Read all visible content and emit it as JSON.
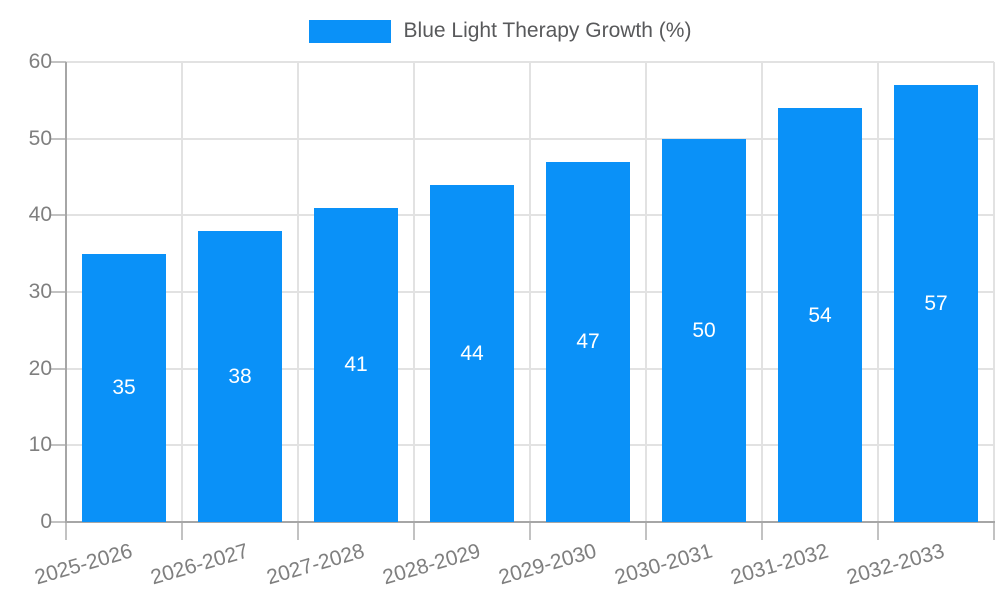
{
  "legend": {
    "label": "Blue Light Therapy Growth (%)"
  },
  "chart_data": {
    "type": "bar",
    "title": "",
    "legend_label": "Blue Light Therapy Growth (%)",
    "legend_position": "top",
    "categories": [
      "2025-2026",
      "2026-2027",
      "2027-2028",
      "2028-2029",
      "2029-2030",
      "2030-2031",
      "2031-2032",
      "2032-2033"
    ],
    "values": [
      35,
      38,
      41,
      44,
      47,
      50,
      54,
      57
    ],
    "xlabel": "",
    "ylabel": "",
    "ylim": [
      0,
      60
    ],
    "yticks": [
      0,
      10,
      20,
      30,
      40,
      50,
      60
    ],
    "grid": true,
    "value_label_position": "inside-center",
    "colors": {
      "bar": "#0a91f8",
      "grid": "#e2e2e2",
      "axis": "#a6a6a6",
      "tick": "#c2c2c2",
      "tick_text": "#7f7f7f",
      "legend_text": "#58595b",
      "value_text": "#ffffff",
      "background": "#ffffff"
    }
  }
}
